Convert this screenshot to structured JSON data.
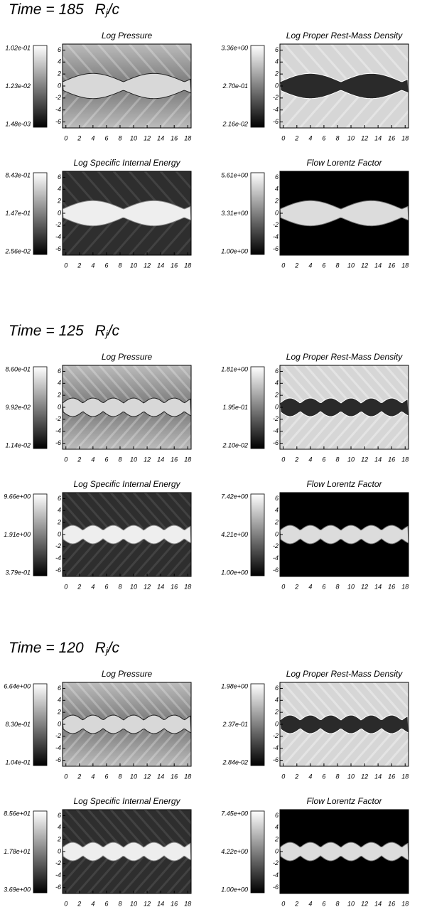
{
  "figures": [
    {
      "time": {
        "prefix": "Time =",
        "value": 185,
        "unit": "R",
        "unit_sub": "j",
        "unit_suffix": "/c"
      },
      "panels": [
        {
          "title": "Log Pressure",
          "colorbar": [
            "1.02e-01",
            "1.23e-02",
            "1.48e-03"
          ]
        },
        {
          "title": "Log Proper Rest-Mass Density",
          "colorbar": [
            "3.36e+00",
            "2.70e-01",
            "2.16e-02"
          ]
        },
        {
          "title": "Log Specific Internal Energy",
          "colorbar": [
            "8.43e-01",
            "1.47e-01",
            "2.56e-02"
          ]
        },
        {
          "title": "Flow Lorentz Factor",
          "colorbar": [
            "5.61e+00",
            "3.31e+00",
            "1.00e+00"
          ]
        }
      ]
    },
    {
      "time": {
        "prefix": "Time =",
        "value": 125,
        "unit": "R",
        "unit_sub": "j",
        "unit_suffix": "/c"
      },
      "panels": [
        {
          "title": "Log Pressure",
          "colorbar": [
            "8.60e-01",
            "9.92e-02",
            "1.14e-02"
          ]
        },
        {
          "title": "Log Proper Rest-Mass Density",
          "colorbar": [
            "1.81e+00",
            "1.95e-01",
            "2.10e-02"
          ]
        },
        {
          "title": "Log Specific Internal Energy",
          "colorbar": [
            "9.66e+00",
            "1.91e+00",
            "3.79e-01"
          ]
        },
        {
          "title": "Flow Lorentz Factor",
          "colorbar": [
            "7.42e+00",
            "4.21e+00",
            "1.00e+00"
          ]
        }
      ]
    },
    {
      "time": {
        "prefix": "Time =",
        "value": 120,
        "unit": "R",
        "unit_sub": "j",
        "unit_suffix": "/c"
      },
      "panels": [
        {
          "title": "Log Pressure",
          "colorbar": [
            "6.64e+00",
            "8.30e-01",
            "1.04e-01"
          ]
        },
        {
          "title": "Log Proper Rest-Mass Density",
          "colorbar": [
            "1.98e+00",
            "2.37e-01",
            "2.84e-02"
          ]
        },
        {
          "title": "Log Specific Internal Energy",
          "colorbar": [
            "8.56e+01",
            "1.78e+01",
            "3.69e+00"
          ]
        },
        {
          "title": "Flow Lorentz Factor",
          "colorbar": [
            "7.45e+00",
            "4.22e+00",
            "1.00e+00"
          ]
        }
      ]
    }
  ],
  "axes": {
    "xlim": [
      -0.5,
      18.5
    ],
    "ylim": [
      -7,
      7
    ],
    "xticks": [
      0,
      2,
      4,
      6,
      8,
      10,
      12,
      14,
      16,
      18
    ],
    "yticks": [
      6,
      4,
      2,
      0,
      -2,
      -4,
      -6
    ]
  }
}
